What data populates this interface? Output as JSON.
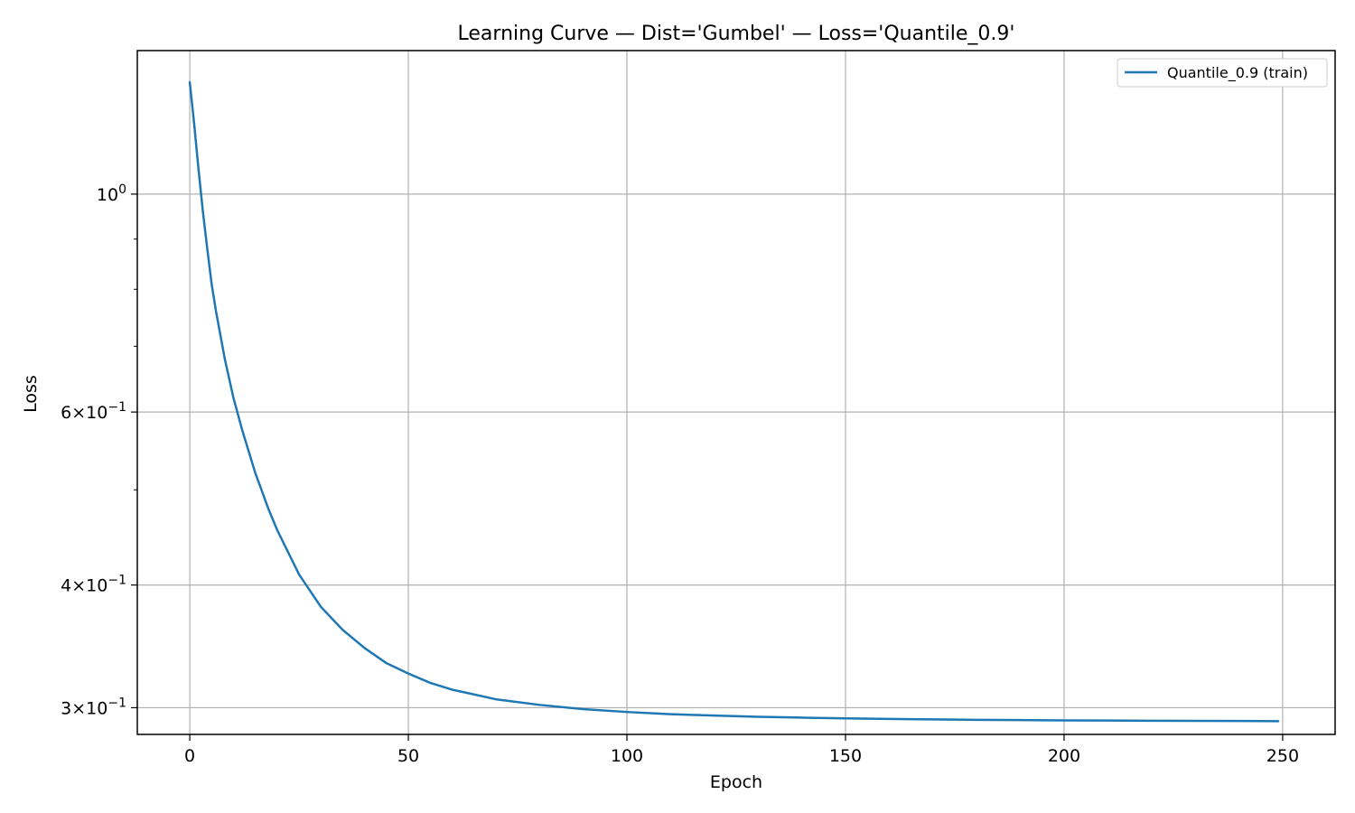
{
  "chart_data": {
    "type": "line",
    "title": "Learning Curve — Dist='Gumbel' — Loss='Quantile_0.9'",
    "xlabel": "Epoch",
    "ylabel": "Loss",
    "y_scale": "log",
    "xlim": [
      -12,
      262
    ],
    "ylim": [
      0.2818,
      1.4
    ],
    "x_ticks": [
      0,
      50,
      100,
      150,
      200,
      250
    ],
    "x_tick_labels": [
      "0",
      "50",
      "100",
      "150",
      "200",
      "250"
    ],
    "y_major_ticks": [
      {
        "value": 1.0,
        "mantissa": "",
        "base": "10",
        "exp": "0"
      },
      {
        "value": 0.6,
        "mantissa": "6",
        "base": "10",
        "exp": "−1"
      },
      {
        "value": 0.4,
        "mantissa": "4",
        "base": "10",
        "exp": "−1"
      },
      {
        "value": 0.3,
        "mantissa": "3",
        "base": "10",
        "exp": "−1"
      }
    ],
    "y_minor_ticks": [
      0.5,
      0.7,
      0.8,
      0.9
    ],
    "grid": true,
    "legend": {
      "position": "top-right",
      "entries": [
        "Quantile_0.9 (train)"
      ]
    },
    "series": [
      {
        "name": "Quantile_0.9 (train)",
        "color": "#1f77b4",
        "x": [
          0,
          1,
          2,
          3,
          4,
          5,
          6,
          8,
          10,
          12,
          15,
          18,
          20,
          25,
          30,
          35,
          40,
          45,
          50,
          55,
          60,
          70,
          80,
          90,
          100,
          110,
          120,
          130,
          140,
          150,
          160,
          170,
          180,
          190,
          200,
          210,
          220,
          230,
          240,
          249
        ],
        "values": [
          1.3,
          1.18,
          1.06,
          0.96,
          0.88,
          0.81,
          0.76,
          0.68,
          0.62,
          0.575,
          0.52,
          0.478,
          0.455,
          0.41,
          0.38,
          0.36,
          0.345,
          0.333,
          0.325,
          0.318,
          0.313,
          0.306,
          0.302,
          0.299,
          0.297,
          0.2955,
          0.2945,
          0.2937,
          0.2931,
          0.2926,
          0.2922,
          0.2919,
          0.2916,
          0.2914,
          0.2912,
          0.2911,
          0.291,
          0.2909,
          0.2908,
          0.2907
        ]
      }
    ]
  }
}
